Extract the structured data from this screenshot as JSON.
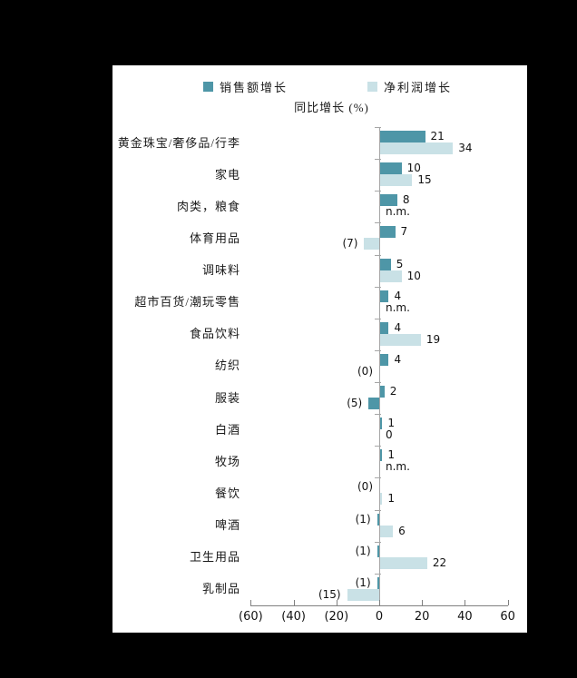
{
  "colors": {
    "canvas_bg": "#000000",
    "panel_bg": "#ffffff",
    "sales_series": "#4e96a7",
    "profit_series": "#c9e1e6",
    "axis_line": "#a6a6a6"
  },
  "legend": {
    "items": [
      {
        "label": "销售额增长",
        "color": "#4e96a7"
      },
      {
        "label": "净利润增长",
        "color": "#c9e1e6"
      }
    ]
  },
  "title": "同比增长 (%)",
  "chart_data": {
    "type": "bar",
    "orientation": "horizontal",
    "title": "同比增长 (%)",
    "legend_position": "top",
    "grid": false,
    "xlim": [
      -60,
      60
    ],
    "x_ticks": [
      {
        "value": -60,
        "label": "(60)"
      },
      {
        "value": -40,
        "label": "(40)"
      },
      {
        "value": -20,
        "label": "(20)"
      },
      {
        "value": 0,
        "label": "0"
      },
      {
        "value": 20,
        "label": "20"
      },
      {
        "value": 40,
        "label": "40"
      },
      {
        "value": 60,
        "label": "60"
      }
    ],
    "categories": [
      "黄金珠宝/奢侈品/行李",
      "家电",
      "肉类，粮食",
      "体育用品",
      "调味料",
      "超市百货/潮玩零售",
      "食品饮料",
      "纺织",
      "服装",
      "白酒",
      "牧场",
      "餐饮",
      "啤酒",
      "卫生用品",
      "乳制品"
    ],
    "series": [
      {
        "name": "销售额增长",
        "color": "#4e96a7",
        "values": [
          21,
          10,
          8,
          7,
          5,
          4,
          4,
          4,
          2,
          1,
          1,
          0,
          -1,
          -1,
          -1
        ],
        "labels": [
          "21",
          "10",
          "8",
          "7",
          "5",
          "4",
          "4",
          "4",
          "2",
          "1",
          "1",
          "(0)",
          "(1)",
          "(1)",
          "(1)"
        ]
      },
      {
        "name": "净利润增长",
        "color": "#c9e1e6",
        "values": [
          34,
          15,
          null,
          -7,
          10,
          null,
          19,
          0,
          -5,
          0,
          null,
          1,
          6,
          22,
          -15
        ],
        "labels": [
          "34",
          "15",
          "n.m.",
          "(7)",
          "10",
          "n.m.",
          "19",
          "(0)",
          "(5)",
          "0",
          "n.m.",
          "1",
          "6",
          "22",
          "(15)"
        ]
      }
    ],
    "bar_color_overrides": [
      {
        "series": 1,
        "index": 8,
        "color": "#4e96a7"
      }
    ]
  }
}
